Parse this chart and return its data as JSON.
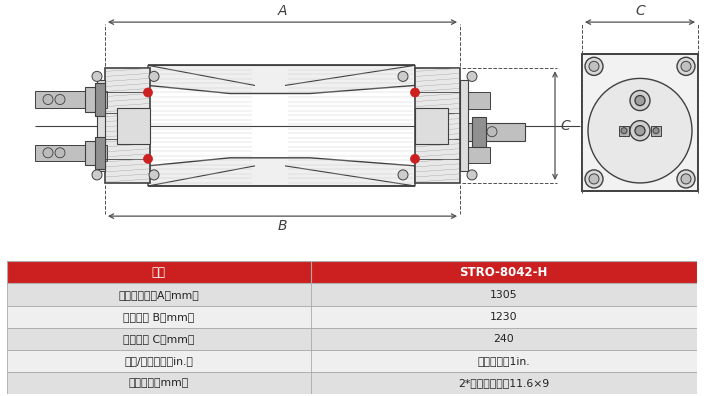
{
  "table_header_bg": "#CC2020",
  "table_header_text_color": "#FFFFFF",
  "table_row_bg_1": "#E0E0E0",
  "table_row_bg_2": "#EFEFEF",
  "table_border_color": "#AAAAAA",
  "table_text_color": "#222222",
  "table_header_label": "型号",
  "table_model": "STRO-8042-H",
  "table_rows": [
    [
      "膜组件拉杆长A（mm）",
      "1305"
    ],
    [
      "法兰间距 B（mm）",
      "1230"
    ],
    [
      "法兰宽度 C（mm）",
      "240"
    ],
    [
      "进水/浓水接口（in.）",
      "卡箍式接口1in."
    ],
    [
      "产水接口（mm）",
      "2*软管快速接口11.6×9"
    ]
  ],
  "drawing_bg": "#FFFFFF",
  "line_color": "#404040",
  "dim_color": "#505050",
  "red_color": "#CC2020",
  "hatch_color": "#888888",
  "light_gray": "#D8D8D8",
  "mid_gray": "#C0C0C0",
  "dark_gray": "#909090",
  "background_color": "#FFFFFF",
  "col_split": 0.44
}
